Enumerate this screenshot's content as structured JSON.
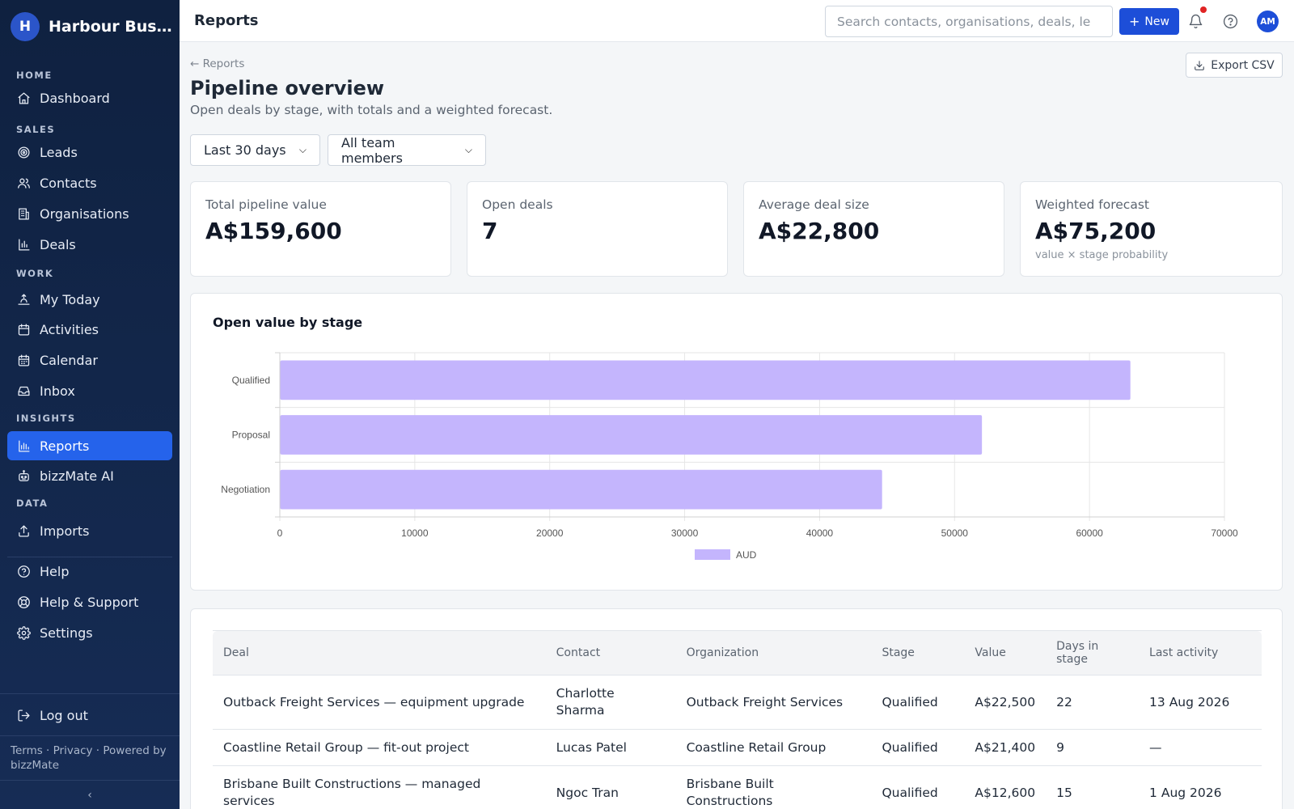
{
  "brand": {
    "initial": "H",
    "name": "Harbour Bus…"
  },
  "sidebar": {
    "sections": [
      {
        "title": "HOME",
        "items": [
          {
            "label": "Dashboard",
            "icon": "home-icon",
            "active": false
          }
        ]
      },
      {
        "title": "SALES",
        "items": [
          {
            "label": "Leads",
            "icon": "target-icon",
            "active": false
          },
          {
            "label": "Contacts",
            "icon": "users-icon",
            "active": false
          },
          {
            "label": "Organisations",
            "icon": "building-icon",
            "active": false
          },
          {
            "label": "Deals",
            "icon": "bar-chart-icon",
            "active": false
          }
        ]
      },
      {
        "title": "WORK",
        "items": [
          {
            "label": "My Today",
            "icon": "sunrise-icon",
            "active": false
          },
          {
            "label": "Activities",
            "icon": "calendar-icon",
            "active": false
          },
          {
            "label": "Calendar",
            "icon": "calendar-grid-icon",
            "active": false
          },
          {
            "label": "Inbox",
            "icon": "inbox-icon",
            "active": false
          }
        ]
      },
      {
        "title": "INSIGHTS",
        "items": [
          {
            "label": "Reports",
            "icon": "reports-icon",
            "active": true
          },
          {
            "label": "bizzMate AI",
            "icon": "robot-icon",
            "active": false
          }
        ]
      },
      {
        "title": "DATA",
        "items": [
          {
            "label": "Imports",
            "icon": "upload-icon",
            "active": false
          }
        ]
      }
    ],
    "utility_items": [
      {
        "label": "Help",
        "icon": "help-icon"
      },
      {
        "label": "Help & Support",
        "icon": "lifebuoy-icon"
      },
      {
        "label": "Settings",
        "icon": "gear-icon"
      }
    ],
    "logout_label": "Log out",
    "footer_text": "Terms · Privacy · Powered by bizzMate",
    "collapse_glyph": "‹"
  },
  "topbar": {
    "title": "Reports",
    "search_placeholder": "Search contacts, organisations, deals, le",
    "new_label": "New",
    "avatar_initials": "AM"
  },
  "page": {
    "back_label": "← Reports",
    "export_label": "Export CSV",
    "title": "Pipeline overview",
    "subtitle": "Open deals by stage, with totals and a weighted forecast.",
    "filters": {
      "period": "Last 30 days",
      "team": "All team members"
    }
  },
  "kpis": [
    {
      "label": "Total pipeline value",
      "value": "A$159,600",
      "note": ""
    },
    {
      "label": "Open deals",
      "value": "7",
      "note": ""
    },
    {
      "label": "Average deal size",
      "value": "A$22,800",
      "note": ""
    },
    {
      "label": "Weighted forecast",
      "value": "A$75,200",
      "note": "value × stage probability"
    }
  ],
  "chart_title": "Open value by stage",
  "chart_data": {
    "type": "bar",
    "orientation": "horizontal",
    "categories": [
      "Qualified",
      "Proposal",
      "Negotiation"
    ],
    "series": [
      {
        "name": "AUD",
        "values": [
          63000,
          52000,
          44600
        ]
      }
    ],
    "xlim": [
      0,
      70000
    ],
    "xticks": [
      0,
      10000,
      20000,
      30000,
      40000,
      50000,
      60000,
      70000
    ],
    "grid": true,
    "legend": "bottom",
    "bar_color": "#c4b5fd"
  },
  "table": {
    "headers": [
      "Deal",
      "Contact",
      "Organization",
      "Stage",
      "Value",
      "Days in stage",
      "Last activity"
    ],
    "rows": [
      [
        "Outback Freight Services — equipment upgrade",
        "Charlotte Sharma",
        "Outback Freight Services",
        "Qualified",
        "A$22,500",
        "22",
        "13 Aug 2026"
      ],
      [
        "Coastline Retail Group — fit-out project",
        "Lucas Patel",
        "Coastline Retail Group",
        "Qualified",
        "A$21,400",
        "9",
        "—"
      ],
      [
        "Brisbane Built Constructions — managed services",
        "Ngoc Tran",
        "Brisbane Built Constructions",
        "Qualified",
        "A$12,600",
        "15",
        "1 Aug 2026"
      ]
    ]
  }
}
